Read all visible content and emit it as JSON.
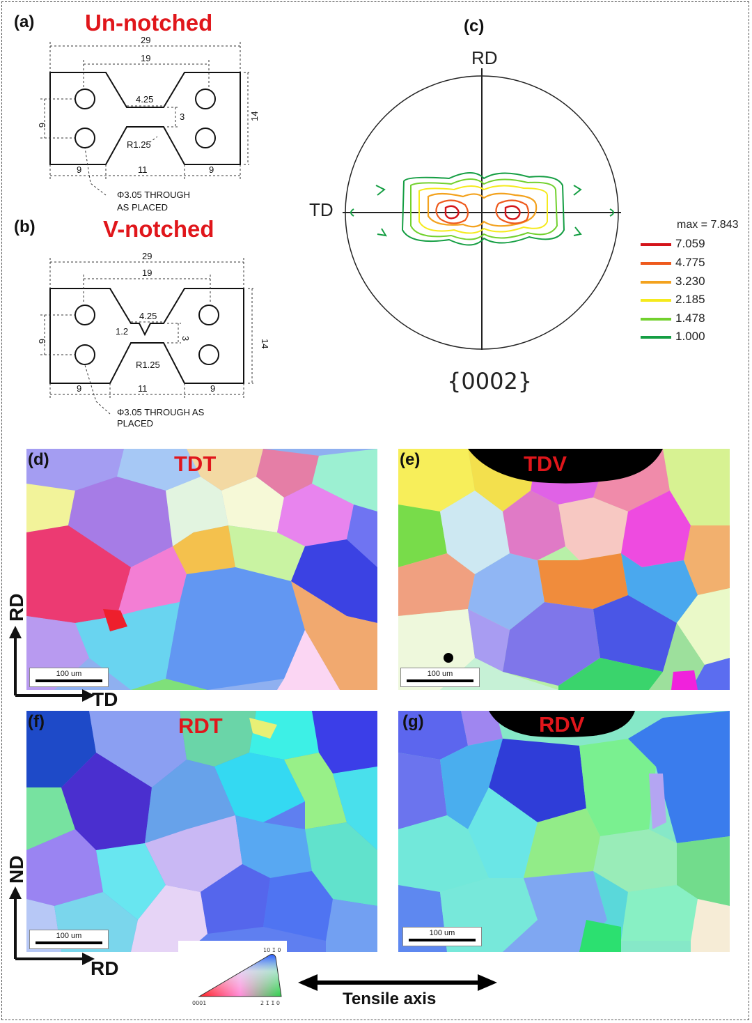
{
  "panels": {
    "a": {
      "label": "(a)",
      "title": "Un-notched",
      "dims": {
        "total": "29",
        "inner": "19",
        "gauge_width": "4.25",
        "hole_spacing": "6",
        "gauge_height": "3",
        "height": "14",
        "radius": "R1.25",
        "left": "9",
        "middle": "11",
        "right": "9"
      },
      "note_line1": "Φ3.05 THROUGH",
      "note_line2": "AS PLACED"
    },
    "b": {
      "label": "(b)",
      "title": "V-notched",
      "dims": {
        "total": "29",
        "inner": "19",
        "gauge_width": "4.25",
        "notch_depth": "1.2",
        "hole_spacing": "6",
        "gauge_height": "3",
        "height": "14",
        "radius": "R1.25",
        "left": "9",
        "middle": "11",
        "right": "9"
      },
      "note_line1": "Φ3.05 THROUGH AS",
      "note_line2": "PLACED"
    },
    "c": {
      "label": "(c)",
      "rd": "RD",
      "td": "TD",
      "plane": "{0002}",
      "max_label": "max = 7.843",
      "levels": [
        {
          "value": "7.059",
          "color": "#d4141a"
        },
        {
          "value": "4.775",
          "color": "#ee5a1d"
        },
        {
          "value": "3.230",
          "color": "#f3a21e"
        },
        {
          "value": "2.185",
          "color": "#f5ea1d"
        },
        {
          "value": "1.478",
          "color": "#72d12e"
        },
        {
          "value": "1.000",
          "color": "#159e43"
        }
      ]
    },
    "d": {
      "label": "(d)",
      "title": "TDT",
      "scale": "100 um"
    },
    "e": {
      "label": "(e)",
      "title": "TDV",
      "scale": "100 um"
    },
    "f": {
      "label": "(f)",
      "title": "RDT",
      "scale": "100 um"
    },
    "g": {
      "label": "(g)",
      "title": "RDV",
      "scale": "100 um"
    }
  },
  "axes": {
    "top_vertical": "RD",
    "top_horizontal": "TD",
    "bottom_vertical": "ND",
    "bottom_horizontal": "RD"
  },
  "ipf_key": {
    "top": "10 1̄ 0",
    "left": "0001",
    "right": "2 1̄ 1̄ 0"
  },
  "tensile_label": "Tensile axis"
}
